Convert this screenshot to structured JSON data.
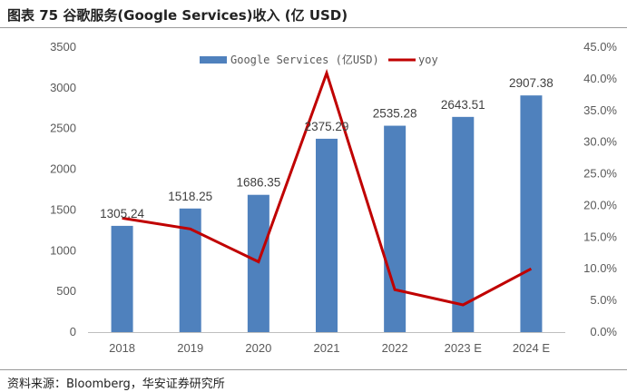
{
  "header": {
    "title": "图表 75 谷歌服务(Google Services)收入 (亿 USD)"
  },
  "footer": {
    "source": "资料来源：Bloomberg，华安证券研究所"
  },
  "colors": {
    "bar": "#4f81bd",
    "line": "#c00000",
    "text": "#595959",
    "axis": "#bfbfbf"
  },
  "chart_data": {
    "type": "bar",
    "categories": [
      "2018",
      "2019",
      "2020",
      "2021",
      "2022",
      "2023 E",
      "2024 E"
    ],
    "series": [
      {
        "name": "Google Services (亿USD)",
        "type": "bar",
        "axis": "left",
        "values": [
          1305.24,
          1518.25,
          1686.35,
          2375.29,
          2535.28,
          2643.51,
          2907.38
        ],
        "labels": [
          "1305.24",
          "1518.25",
          "1686.35",
          "2375.29",
          "2535.28",
          "2643.51",
          "2907.38"
        ]
      },
      {
        "name": "yoy",
        "type": "line",
        "axis": "right",
        "values": [
          18.0,
          16.3,
          11.1,
          40.9,
          6.7,
          4.3,
          10.0
        ]
      }
    ],
    "ylim_left": [
      0,
      3500
    ],
    "yticks_left": [
      "0",
      "500",
      "1000",
      "1500",
      "2000",
      "2500",
      "3000",
      "3500"
    ],
    "ylim_right": [
      0,
      45
    ],
    "yticks_right": [
      "0.0%",
      "5.0%",
      "10.0%",
      "15.0%",
      "20.0%",
      "25.0%",
      "30.0%",
      "35.0%",
      "40.0%",
      "45.0%"
    ],
    "legend_position": "top-center",
    "grid": false
  }
}
